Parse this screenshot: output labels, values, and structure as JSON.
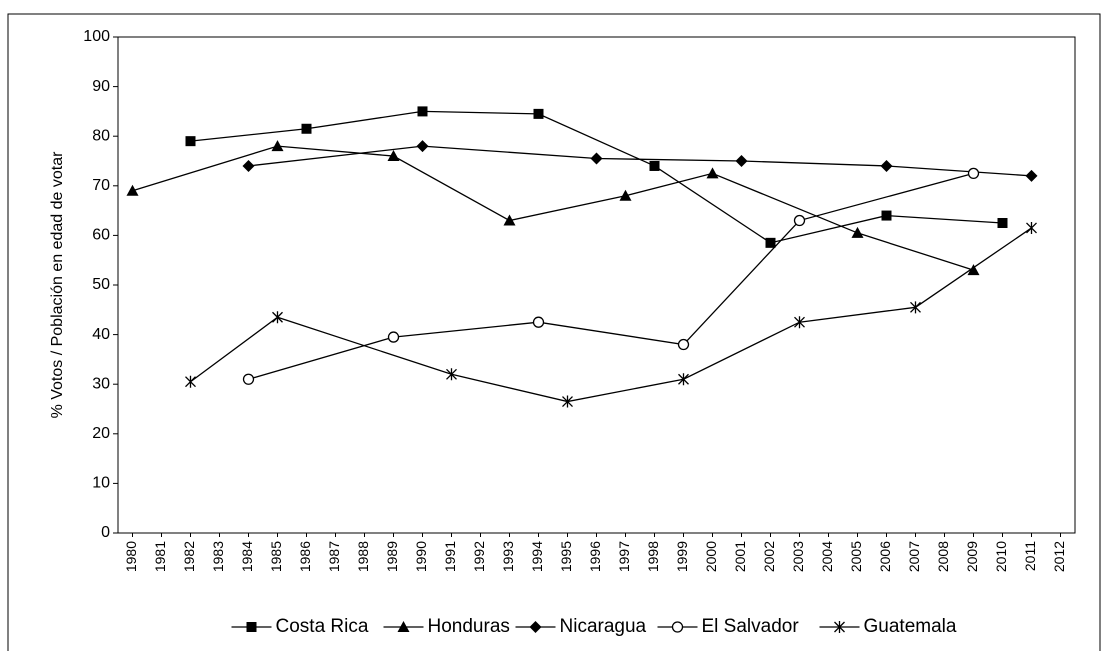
{
  "chart_data": {
    "type": "line",
    "y_label": "% Votos / Población en edad de votar",
    "xlim": [
      1979.5,
      2012.5
    ],
    "xticks": [
      1980,
      1981,
      1982,
      1983,
      1984,
      1985,
      1986,
      1987,
      1988,
      1989,
      1990,
      1991,
      1992,
      1993,
      1994,
      1995,
      1996,
      1997,
      1998,
      1999,
      2000,
      2001,
      2002,
      2003,
      2004,
      2005,
      2006,
      2007,
      2008,
      2009,
      2010,
      2011,
      2012
    ],
    "ylim": [
      0,
      100
    ],
    "yticks": [
      0,
      10,
      20,
      30,
      40,
      50,
      60,
      70,
      80,
      90,
      100
    ],
    "legend": "bottom",
    "series": [
      {
        "name": "Costa Rica",
        "color": "#000000",
        "marker": "square",
        "x": [
          1982,
          1986,
          1990,
          1994,
          1998,
          2002,
          2006,
          2010
        ],
        "values": [
          79,
          81.5,
          85,
          84.5,
          74,
          58.5,
          64,
          62.5
        ]
      },
      {
        "name": "Honduras",
        "color": "#000000",
        "marker": "triangle",
        "x": [
          1980,
          1985,
          1989,
          1993,
          1997,
          2000,
          2005,
          2009
        ],
        "values": [
          69,
          78,
          76,
          63,
          68,
          72.5,
          60.5,
          53
        ]
      },
      {
        "name": "Nicaragua",
        "color": "#000000",
        "marker": "diamond",
        "x": [
          1984,
          1990,
          1996,
          2001,
          2006,
          2011
        ],
        "values": [
          74,
          78,
          75.5,
          75,
          74,
          72
        ]
      },
      {
        "name": "El Salvador",
        "color": "#000000",
        "marker": "circle",
        "x": [
          1984,
          1989,
          1994,
          1999,
          2003,
          2009
        ],
        "values": [
          31,
          39.5,
          42.5,
          38,
          63,
          72.5
        ]
      },
      {
        "name": "Guatemala",
        "color": "#000000",
        "marker": "star",
        "x": [
          1982,
          1985,
          1991,
          1995,
          1999,
          2003,
          2007,
          2011
        ],
        "values": [
          30.5,
          43.5,
          32,
          26.5,
          31,
          42.5,
          45.5,
          61.5
        ]
      }
    ]
  }
}
